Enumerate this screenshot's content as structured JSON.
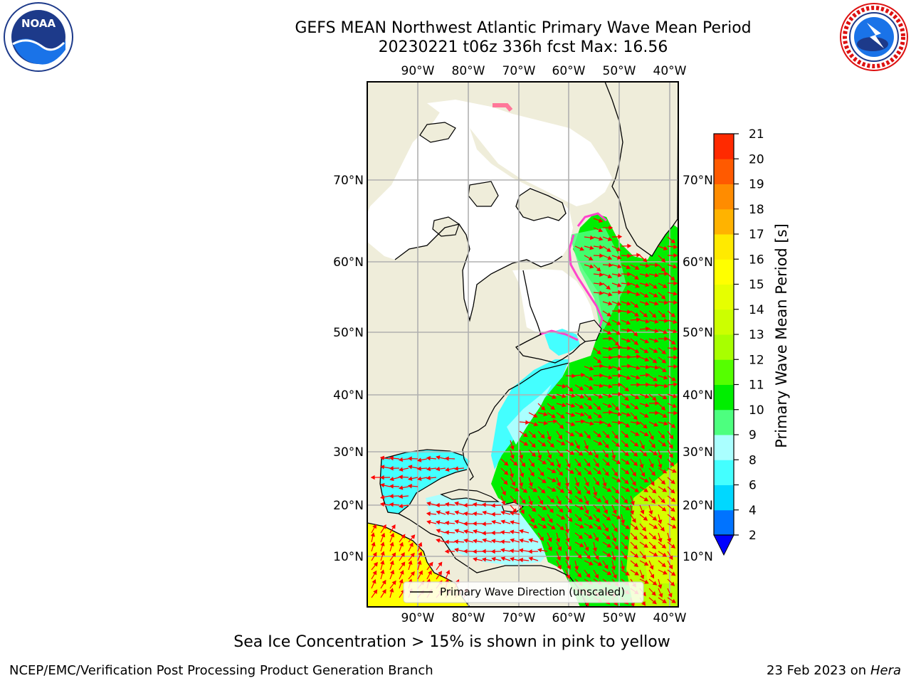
{
  "title": {
    "line1": "GEFS MEAN Northwest Atlantic Primary Wave Mean Period",
    "line2": "20230221 t06z 336h fcst   Max: 16.56"
  },
  "logos": {
    "left": {
      "text": "NOAA",
      "icon": "noaa-logo"
    },
    "right": {
      "icon": "nws-logo"
    }
  },
  "map": {
    "lon_range": [
      -100,
      -38
    ],
    "lat_range": [
      2,
      82
    ],
    "lon_ticks": [
      {
        "value": -90,
        "label": "90°W"
      },
      {
        "value": -80,
        "label": "80°W"
      },
      {
        "value": -70,
        "label": "70°W"
      },
      {
        "value": -60,
        "label": "60°W"
      },
      {
        "value": -50,
        "label": "50°W"
      },
      {
        "value": -40,
        "label": "40°W"
      }
    ],
    "lat_ticks": [
      {
        "value": 10,
        "label": "10°N"
      },
      {
        "value": 20,
        "label": "20°N"
      },
      {
        "value": 30,
        "label": "30°N"
      },
      {
        "value": 40,
        "label": "40°N"
      },
      {
        "value": 50,
        "label": "50°N"
      },
      {
        "value": 60,
        "label": "60°N"
      },
      {
        "value": 70,
        "label": "70°N"
      }
    ],
    "colors": {
      "land": "#efedda",
      "ice_free_white": "#ffffff",
      "grid": "#b0b0b0",
      "arrow": "#ff0000",
      "coast": "#000000"
    },
    "legend": "Primary Wave Direction (unscaled)"
  },
  "colorbar": {
    "label": "Primary Wave Mean Period [s]",
    "ticks": [
      "2",
      "4",
      "6",
      "8",
      "9",
      "10",
      "11",
      "12",
      "13",
      "14",
      "15",
      "16",
      "17",
      "18",
      "19",
      "20",
      "21"
    ],
    "colors": [
      "#0073ff",
      "#00d8ff",
      "#44ffff",
      "#aaffff",
      "#4dff7f",
      "#00ee00",
      "#55ff00",
      "#a8ff00",
      "#ccff00",
      "#e6ff00",
      "#ffff00",
      "#ffea00",
      "#ffb300",
      "#ff8c00",
      "#ff5a00",
      "#ff2a00"
    ],
    "under_color": "#0000ff"
  },
  "footer": {
    "note": "Sea Ice Concentration > 15% is shown in pink to yellow",
    "left": "NCEP/EMC/Verification Post Processing Product Generation Branch",
    "right_date": "23 Feb 2023 on",
    "right_host": "Hera"
  }
}
